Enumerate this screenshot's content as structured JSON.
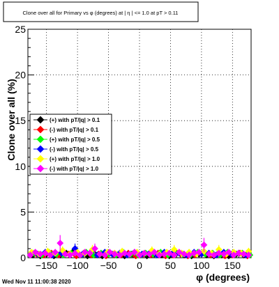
{
  "chart_data": {
    "type": "scatter",
    "title": "Clone  over all for Primary vs φ (degrees) at | η | <= 1.0 at pT > 0.11",
    "xlabel": "φ (degrees)",
    "ylabel": "Clone  over all (%)",
    "xlim": [
      -180,
      180
    ],
    "ylim": [
      0,
      25
    ],
    "x_ticks": [
      -150,
      -100,
      -50,
      0,
      50,
      100,
      150
    ],
    "x_tick_labels": [
      "−150",
      "−100",
      "−50",
      "0",
      "50",
      "100",
      "150"
    ],
    "y_ticks": [
      0,
      5,
      10,
      15,
      20,
      25
    ],
    "y_tick_labels": [
      "0",
      "5",
      "10",
      "15",
      "20",
      "25"
    ],
    "grid": true,
    "legend_position": "left-middle",
    "footer": "Wed Nov 11 11:00:38 2020",
    "series": [
      {
        "name": "(+) with pT/|q| > 0.1",
        "color": "#000000",
        "marker": "diamond",
        "points": [
          [
            -172,
            0.3
          ],
          [
            -160,
            0.2
          ],
          [
            -150,
            0.4
          ],
          [
            -138,
            0.2
          ],
          [
            -128,
            0.3
          ],
          [
            -118,
            0.5
          ],
          [
            -108,
            0.6
          ],
          [
            -96,
            0.3
          ],
          [
            -84,
            0.2
          ],
          [
            -72,
            0.4
          ],
          [
            -60,
            0.2
          ],
          [
            -48,
            0.5
          ],
          [
            -36,
            0.3
          ],
          [
            -24,
            0.2
          ],
          [
            -12,
            0.4
          ],
          [
            0,
            0.3
          ],
          [
            12,
            0.2
          ],
          [
            24,
            0.4
          ],
          [
            36,
            0.3
          ],
          [
            48,
            0.2
          ],
          [
            60,
            0.5
          ],
          [
            72,
            0.3
          ],
          [
            84,
            0.2
          ],
          [
            96,
            0.4
          ],
          [
            108,
            0.3
          ],
          [
            120,
            0.2
          ],
          [
            132,
            0.3
          ],
          [
            144,
            0.2
          ],
          [
            156,
            0.4
          ],
          [
            168,
            0.3
          ]
        ]
      },
      {
        "name": "(-) with pT/|q| > 0.1",
        "color": "#ff0000",
        "marker": "diamond",
        "points": [
          [
            -166,
            0.4
          ],
          [
            -154,
            0.3
          ],
          [
            -142,
            0.5
          ],
          [
            -130,
            0.3
          ],
          [
            -114,
            0.4
          ],
          [
            -102,
            0.2
          ],
          [
            -90,
            0.5
          ],
          [
            -78,
            0.3
          ],
          [
            -66,
            0.4
          ],
          [
            -54,
            0.2
          ],
          [
            -42,
            0.4
          ],
          [
            -30,
            0.3
          ],
          [
            -18,
            0.5
          ],
          [
            -6,
            0.2
          ],
          [
            6,
            0.4
          ],
          [
            18,
            0.3
          ],
          [
            30,
            0.5
          ],
          [
            42,
            0.2
          ],
          [
            54,
            0.3
          ],
          [
            66,
            0.4
          ],
          [
            78,
            0.2
          ],
          [
            90,
            0.3
          ],
          [
            102,
            0.5
          ],
          [
            114,
            0.3
          ],
          [
            126,
            0.4
          ],
          [
            138,
            0.2
          ],
          [
            150,
            0.3
          ],
          [
            162,
            0.5
          ],
          [
            174,
            0.2
          ]
        ]
      },
      {
        "name": "(+) with pT/|q| > 0.5",
        "color": "#00ff00",
        "marker": "diamond",
        "points": [
          [
            -170,
            0.5
          ],
          [
            -158,
            0.3
          ],
          [
            -146,
            0.6
          ],
          [
            -134,
            0.4
          ],
          [
            -122,
            0.3
          ],
          [
            -110,
            0.5
          ],
          [
            -98,
            0.4
          ],
          [
            -86,
            0.6
          ],
          [
            -74,
            0.3
          ],
          [
            -62,
            0.5
          ],
          [
            -50,
            0.4
          ],
          [
            -38,
            0.3
          ],
          [
            -26,
            0.6
          ],
          [
            -14,
            0.4
          ],
          [
            -2,
            0.3
          ],
          [
            10,
            0.5
          ],
          [
            22,
            0.4
          ],
          [
            34,
            0.6
          ],
          [
            46,
            0.3
          ],
          [
            58,
            0.5
          ],
          [
            70,
            0.4
          ],
          [
            82,
            0.3
          ],
          [
            94,
            0.6
          ],
          [
            106,
            0.4
          ],
          [
            118,
            0.5
          ],
          [
            130,
            0.3
          ],
          [
            142,
            0.6
          ],
          [
            154,
            0.4
          ],
          [
            166,
            0.5
          ],
          [
            178,
            0.3
          ]
        ]
      },
      {
        "name": "(-) with pT/|q| > 0.5",
        "color": "#0000ff",
        "marker": "diamond",
        "points": [
          [
            -164,
            0.4
          ],
          [
            -152,
            0.6
          ],
          [
            -140,
            0.3
          ],
          [
            -126,
            0.5
          ],
          [
            -104,
            1.0
          ],
          [
            -92,
            0.4
          ],
          [
            -80,
            0.5
          ],
          [
            -68,
            0.3
          ],
          [
            -56,
            0.6
          ],
          [
            -44,
            0.4
          ],
          [
            -32,
            0.5
          ],
          [
            -20,
            0.3
          ],
          [
            -8,
            0.6
          ],
          [
            4,
            0.4
          ],
          [
            16,
            0.5
          ],
          [
            28,
            0.3
          ],
          [
            40,
            0.6
          ],
          [
            52,
            0.4
          ],
          [
            64,
            0.5
          ],
          [
            76,
            0.3
          ],
          [
            88,
            0.6
          ],
          [
            100,
            0.4
          ],
          [
            112,
            0.5
          ],
          [
            124,
            0.3
          ],
          [
            136,
            0.6
          ],
          [
            148,
            0.4
          ],
          [
            160,
            0.5
          ],
          [
            172,
            0.3
          ]
        ]
      },
      {
        "name": "(+) with pT/|q| > 1.0",
        "color": "#ffff00",
        "marker": "diamond",
        "points": [
          [
            -174,
            0.6
          ],
          [
            -162,
            0.4
          ],
          [
            -148,
            0.7
          ],
          [
            -136,
            0.5
          ],
          [
            -124,
            0.8
          ],
          [
            -112,
            0.4
          ],
          [
            -100,
            0.6
          ],
          [
            -88,
            0.5
          ],
          [
            -76,
            0.9
          ],
          [
            -64,
            0.4
          ],
          [
            -52,
            0.6
          ],
          [
            -40,
            0.5
          ],
          [
            -28,
            0.7
          ],
          [
            -16,
            0.4
          ],
          [
            -4,
            0.6
          ],
          [
            8,
            0.5
          ],
          [
            20,
            0.8
          ],
          [
            32,
            0.4
          ],
          [
            44,
            0.6
          ],
          [
            56,
            0.9
          ],
          [
            68,
            0.5
          ],
          [
            80,
            0.6
          ],
          [
            92,
            0.4
          ],
          [
            104,
            0.7
          ],
          [
            116,
            0.5
          ],
          [
            128,
            0.9
          ],
          [
            140,
            0.4
          ],
          [
            152,
            0.6
          ],
          [
            164,
            0.5
          ],
          [
            176,
            0.7
          ]
        ]
      },
      {
        "name": "(-) with pT/|q| > 1.0",
        "color": "#ff00ff",
        "marker": "diamond",
        "points": [
          [
            -176,
            0.3
          ],
          [
            -168,
            0.6
          ],
          [
            -160,
            0.4
          ],
          [
            -152,
            0.5
          ],
          [
            -144,
            0.3
          ],
          [
            -136,
            0.6
          ],
          [
            -128,
            1.6
          ],
          [
            -120,
            0.4
          ],
          [
            -112,
            0.3
          ],
          [
            -104,
            0.5
          ],
          [
            -96,
            0.3
          ],
          [
            -88,
            0.6
          ],
          [
            -80,
            0.5
          ],
          [
            -72,
            1.0
          ],
          [
            -64,
            0.4
          ],
          [
            -56,
            0.3
          ],
          [
            -48,
            0.6
          ],
          [
            -40,
            0.4
          ],
          [
            -32,
            0.3
          ],
          [
            -24,
            0.5
          ],
          [
            -16,
            0.4
          ],
          [
            -8,
            0.6
          ],
          [
            0,
            0.3
          ],
          [
            8,
            0.5
          ],
          [
            16,
            0.4
          ],
          [
            24,
            0.6
          ],
          [
            32,
            0.3
          ],
          [
            40,
            0.4
          ],
          [
            48,
            0.5
          ],
          [
            56,
            0.3
          ],
          [
            64,
            0.6
          ],
          [
            72,
            0.4
          ],
          [
            80,
            0.3
          ],
          [
            88,
            0.5
          ],
          [
            96,
            0.6
          ],
          [
            104,
            1.4
          ],
          [
            112,
            0.4
          ],
          [
            120,
            0.3
          ],
          [
            128,
            0.5
          ],
          [
            136,
            0.4
          ],
          [
            144,
            0.6
          ],
          [
            152,
            0.3
          ],
          [
            160,
            0.5
          ],
          [
            168,
            0.4
          ],
          [
            176,
            0.3
          ]
        ]
      }
    ]
  }
}
